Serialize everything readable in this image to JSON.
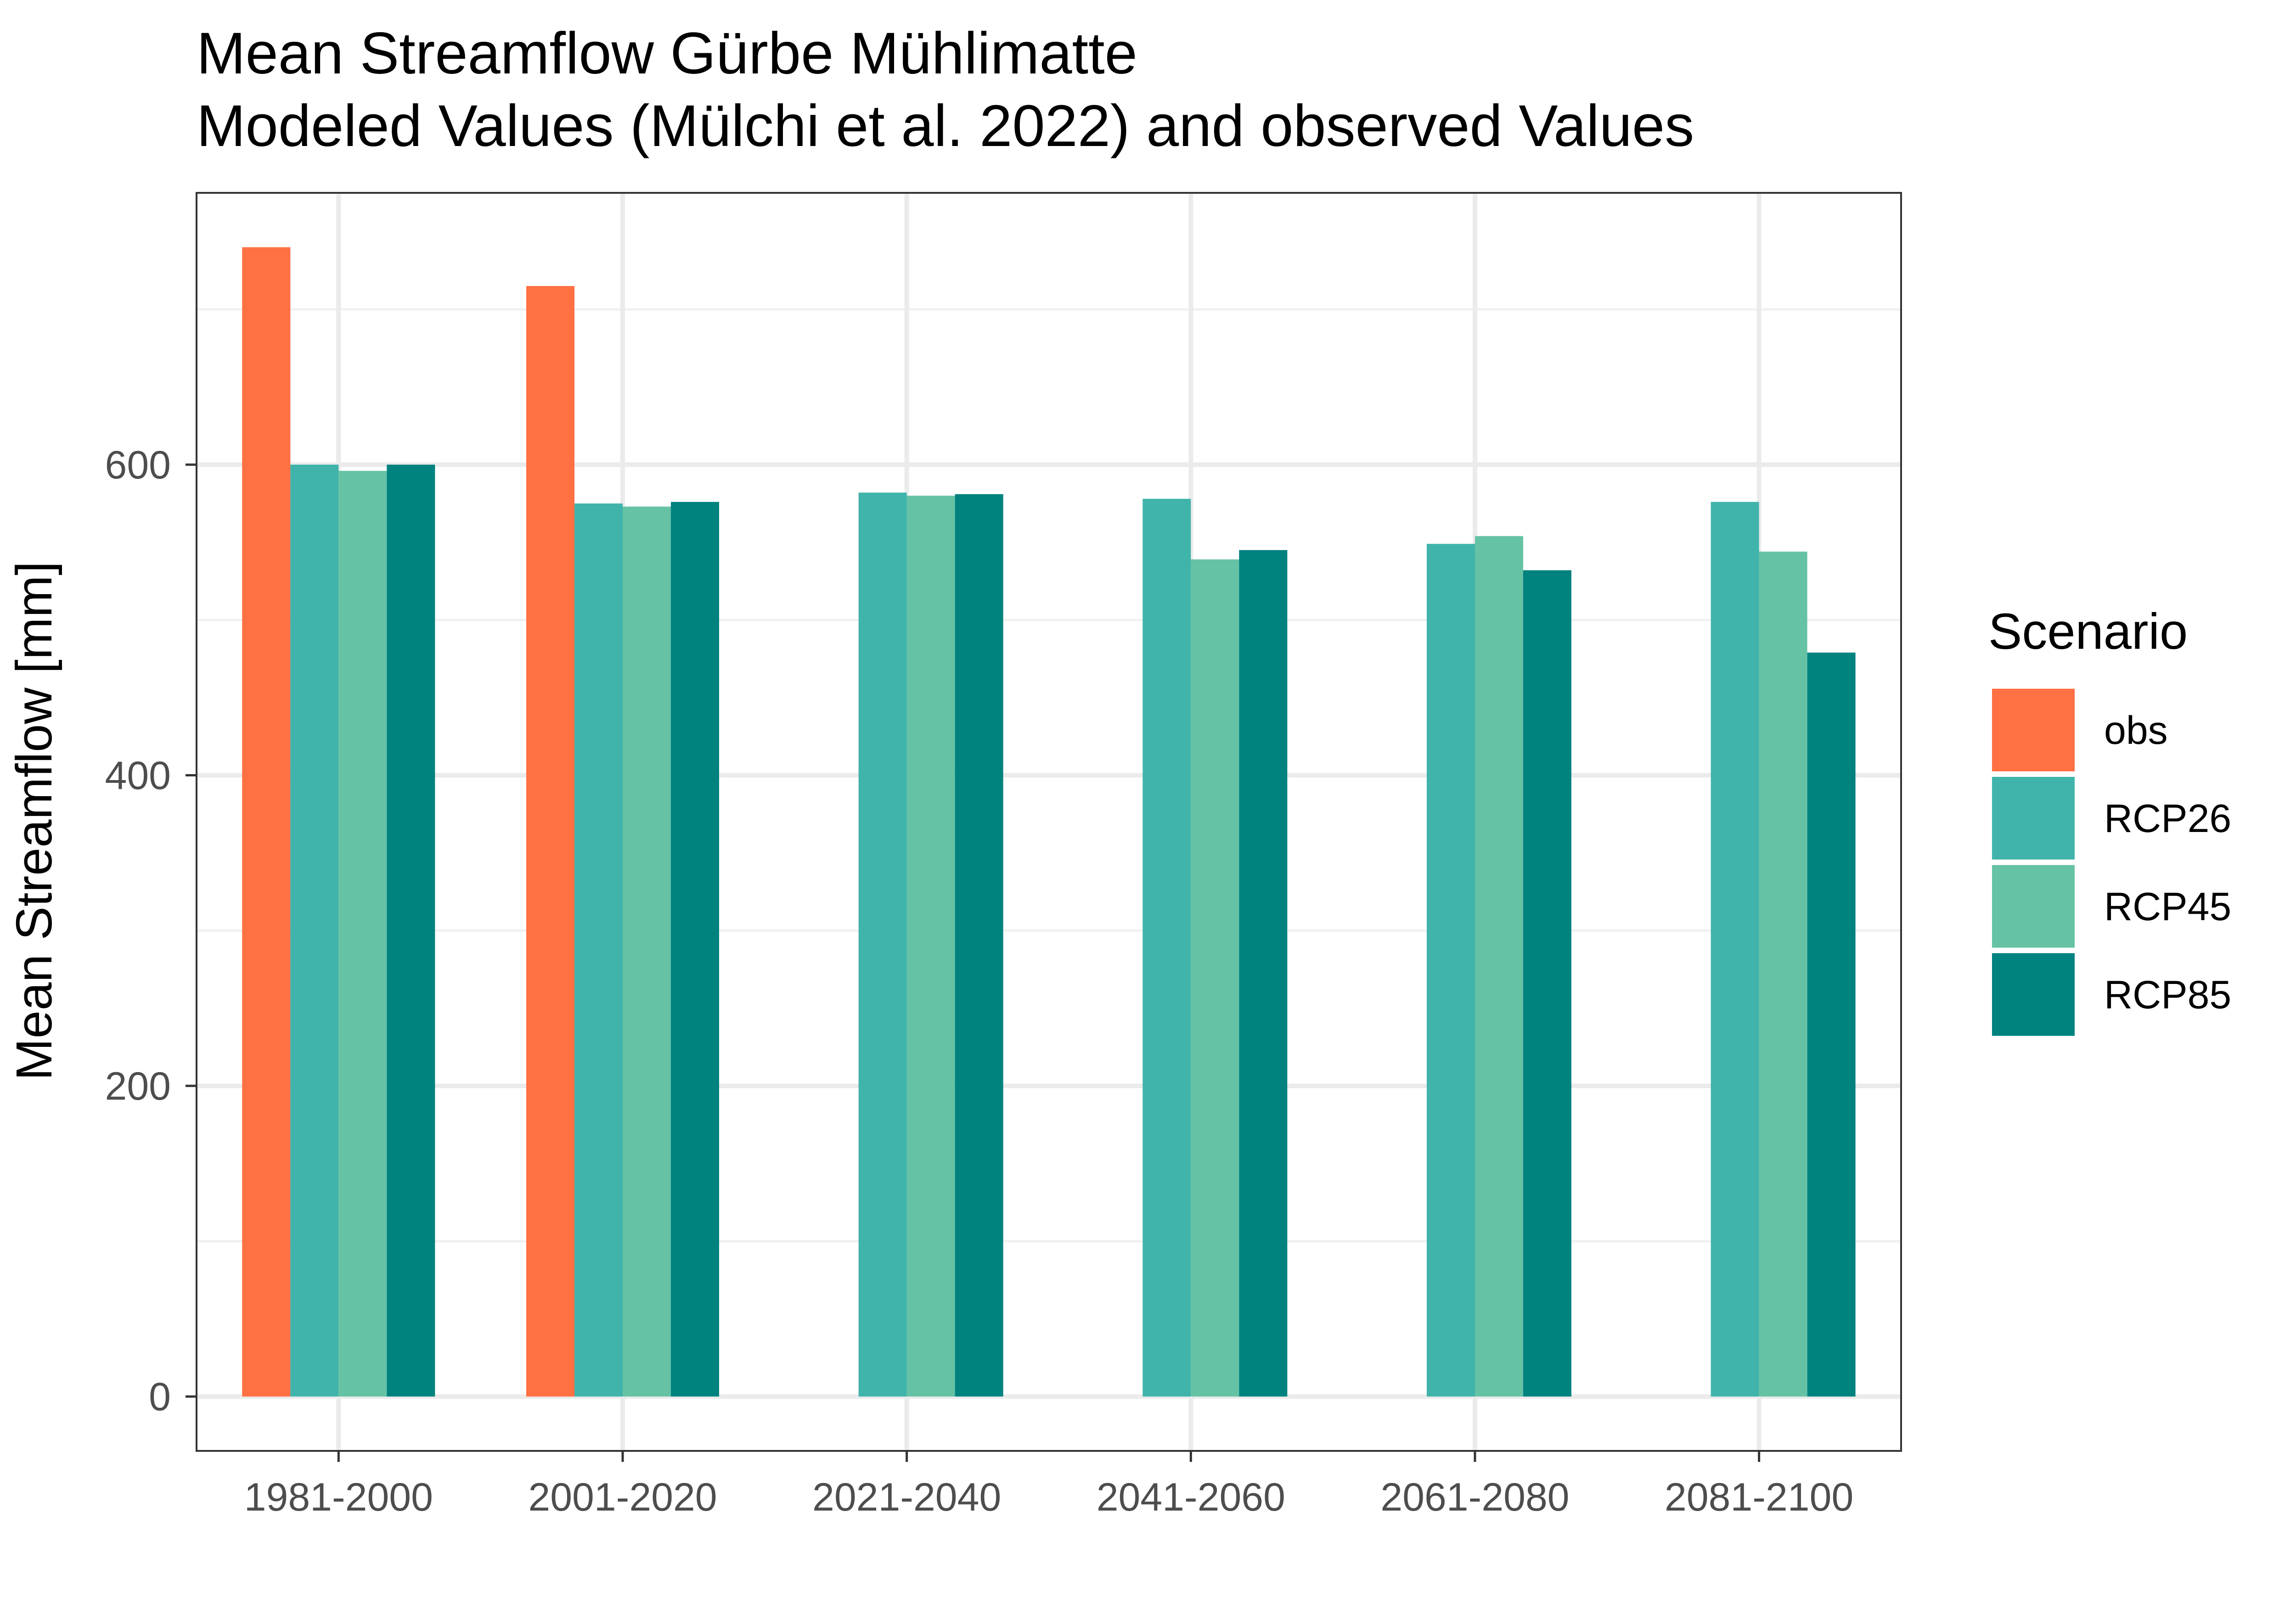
{
  "chart_data": {
    "type": "bar",
    "title": "Mean Streamflow Gürbe Mühlimatte",
    "subtitle": "Modeled Values (Mülchi et al. 2022) and observed Values",
    "xlabel": "",
    "ylabel": "Mean Streamflow [mm]",
    "ylim": [
      -35,
      775
    ],
    "yticks": [
      0,
      200,
      400,
      600
    ],
    "ytick_labels": [
      "0",
      "200",
      "400",
      "600"
    ],
    "grid": true,
    "categories": [
      "1981-2000",
      "2001-2020",
      "2021-2040",
      "2041-2060",
      "2061-2080",
      "2081-2100"
    ],
    "legend": {
      "title": "Scenario",
      "position": "right"
    },
    "series": [
      {
        "name": "obs",
        "color": "#FF7043",
        "values": [
          740,
          715,
          null,
          null,
          null,
          null
        ]
      },
      {
        "name": "RCP26",
        "color": "#40B4AA",
        "values": [
          600,
          575,
          582,
          578,
          549,
          576
        ]
      },
      {
        "name": "RCP45",
        "color": "#66C2A5",
        "values": [
          596,
          573,
          580,
          539,
          554,
          544
        ]
      },
      {
        "name": "RCP85",
        "color": "#00827F",
        "values": [
          600,
          576,
          581,
          545,
          532,
          479
        ]
      }
    ]
  }
}
